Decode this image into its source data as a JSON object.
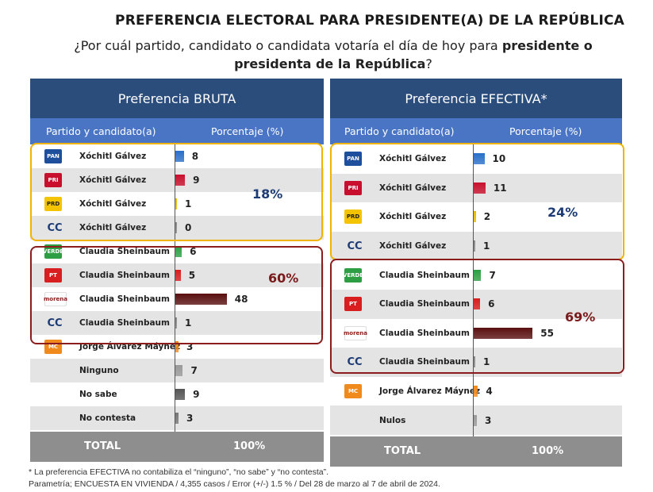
{
  "title": "PREFERENCIA ELECTORAL PARA PRESIDENTE(A) DE LA REPÚBLICA",
  "question": {
    "part1": "¿Por cuál partido, candidato o candidata votaría el día de hoy para ",
    "bold": "presidente o presidenta de la República",
    "part2": "?"
  },
  "colors": {
    "header_dark": "#2b4d7c",
    "header_light": "#4a74c4",
    "xochitl_box": "#f0b400",
    "claudia_box": "#8b1d1d",
    "pct_xochitl": "#1d3b74",
    "pct_claudia": "#7a1a1a"
  },
  "chart_data": [
    {
      "type": "table",
      "title": "Preferencia BRUTA",
      "col_party": "Partido y candidato(a)",
      "col_pct": "Porcentaje (%)",
      "rows": [
        {
          "logo": "PAN",
          "logo_color": "#1d4f9c",
          "candidate": "Xóchitl Gálvez",
          "value": 8,
          "bar_color": "#2a6fc9"
        },
        {
          "logo": "PRI",
          "logo_color": "#c8102e",
          "candidate": "Xóchitl Gálvez",
          "value": 9,
          "bar_color": "#c8102e"
        },
        {
          "logo": "PRD",
          "logo_color": "#f5c400",
          "candidate": "Xóchitl Gálvez",
          "value": 1,
          "bar_color": "#e8b800"
        },
        {
          "logo": "CC",
          "logo_color": "",
          "candidate": "Xóchitl Gálvez",
          "value": 0,
          "bar_color": "#888888"
        },
        {
          "logo": "VERDE",
          "logo_color": "#2e9e44",
          "candidate": "Claudia Sheinbaum",
          "value": 6,
          "bar_color": "#2e9e44"
        },
        {
          "logo": "PT",
          "logo_color": "#d81e1e",
          "candidate": "Claudia Sheinbaum",
          "value": 5,
          "bar_color": "#d81e1e"
        },
        {
          "logo": "morena",
          "logo_color": "#8c1b1b",
          "candidate": "Claudia Sheinbaum",
          "value": 48,
          "bar_color": "#5a0f0f"
        },
        {
          "logo": "CC",
          "logo_color": "",
          "candidate": "Claudia Sheinbaum",
          "value": 1,
          "bar_color": "#888888"
        },
        {
          "logo": "MC",
          "logo_color": "#f08a1c",
          "candidate": "Jorge Álvarez Máynez",
          "value": 3,
          "bar_color": "#f08a1c"
        },
        {
          "logo": "",
          "logo_color": "",
          "candidate": "Ninguno",
          "value": 7,
          "bar_color": "#9a9a9a"
        },
        {
          "logo": "",
          "logo_color": "",
          "candidate": "No sabe",
          "value": 9,
          "bar_color": "#555555"
        },
        {
          "logo": "",
          "logo_color": "",
          "candidate": "No contesta",
          "value": 3,
          "bar_color": "#777777"
        }
      ],
      "group_xochitl_pct": "18%",
      "group_claudia_pct": "60%",
      "total_label": "TOTAL",
      "total_value": "100%"
    },
    {
      "type": "table",
      "title": "Preferencia EFECTIVA*",
      "col_party": "Partido y candidato(a)",
      "col_pct": "Porcentaje (%)",
      "rows": [
        {
          "logo": "PAN",
          "logo_color": "#1d4f9c",
          "candidate": "Xóchitl Gálvez",
          "value": 10,
          "bar_color": "#2a6fc9"
        },
        {
          "logo": "PRI",
          "logo_color": "#c8102e",
          "candidate": "Xóchitl Gálvez",
          "value": 11,
          "bar_color": "#c8102e"
        },
        {
          "logo": "PRD",
          "logo_color": "#f5c400",
          "candidate": "Xóchitl Gálvez",
          "value": 2,
          "bar_color": "#e8b800"
        },
        {
          "logo": "CC",
          "logo_color": "",
          "candidate": "Xóchitl Gálvez",
          "value": 1,
          "bar_color": "#888888"
        },
        {
          "logo": "VERDE",
          "logo_color": "#2e9e44",
          "candidate": "Claudia Sheinbaum",
          "value": 7,
          "bar_color": "#2e9e44"
        },
        {
          "logo": "PT",
          "logo_color": "#d81e1e",
          "candidate": "Claudia Sheinbaum",
          "value": 6,
          "bar_color": "#d81e1e"
        },
        {
          "logo": "morena",
          "logo_color": "#8c1b1b",
          "candidate": "Claudia Sheinbaum",
          "value": 55,
          "bar_color": "#5a0f0f"
        },
        {
          "logo": "CC",
          "logo_color": "",
          "candidate": "Claudia Sheinbaum",
          "value": 1,
          "bar_color": "#888888"
        },
        {
          "logo": "MC",
          "logo_color": "#f08a1c",
          "candidate": "Jorge Álvarez Máynez",
          "value": 4,
          "bar_color": "#f08a1c"
        },
        {
          "logo": "",
          "logo_color": "",
          "candidate": "Nulos",
          "value": 3,
          "bar_color": "#9a9a9a"
        }
      ],
      "group_xochitl_pct": "24%",
      "group_claudia_pct": "69%",
      "total_label": "TOTAL",
      "total_value": "100%"
    }
  ],
  "footnotes": {
    "note1": "* La preferencia EFECTIVA no contabiliza el “ninguno”, “no sabe” y “no contesta”.",
    "note2": "Parametría; ENCUESTA EN VIVIENDA / 4,355 casos / Error (+/-) 1.5 % / Del 28 de marzo al 7 de abril de 2024."
  }
}
